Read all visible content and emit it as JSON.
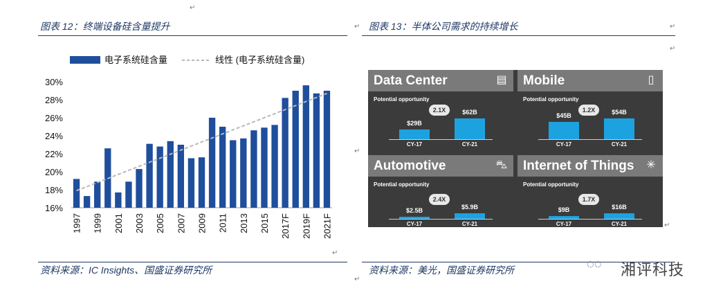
{
  "left": {
    "caption": "图表 12：终端设备硅含量提升",
    "source": "资料来源：IC Insights、国盛证券研究所"
  },
  "right": {
    "caption": "图表 13：半体公司需求的持续增长",
    "source": "资料来源：美光，国盛证券研究所"
  },
  "watermark": "湘评科技",
  "chart_data": [
    {
      "type": "bar",
      "categories": [
        "1997",
        "1998",
        "1999",
        "2000",
        "2001",
        "2002",
        "2003",
        "2004",
        "2005",
        "2006",
        "2007",
        "2008",
        "2009",
        "2010",
        "2011",
        "2012",
        "2013",
        "2014",
        "2015",
        "2016",
        "2017F",
        "2018F",
        "2019F",
        "2020F",
        "2021F"
      ],
      "x_tick_labels": [
        "1997",
        "1999",
        "2001",
        "2003",
        "2005",
        "2007",
        "2009",
        "2011",
        "2013",
        "2015",
        "2017F",
        "2019F",
        "2021F"
      ],
      "series": [
        {
          "name": "电子系统硅含量",
          "values": [
            19.2,
            17.3,
            18.9,
            22.6,
            17.7,
            18.9,
            20.3,
            23.1,
            22.8,
            23.4,
            23.0,
            21.5,
            21.6,
            26.0,
            25.0,
            23.5,
            23.7,
            24.6,
            24.9,
            25.2,
            28.2,
            29.0,
            29.6,
            28.7,
            29.0
          ],
          "color": "#1f4e9c"
        },
        {
          "name": "线性 (电子系统硅含量)",
          "type": "trendline",
          "values_start": 17.9,
          "values_end": 28.7,
          "color": "#b8b8b8"
        }
      ],
      "ylim": [
        16,
        30
      ],
      "y_ticks": [
        "30%",
        "28%",
        "26%",
        "24%",
        "22%",
        "20%",
        "18%",
        "16%"
      ],
      "y_tick_values": [
        30,
        28,
        26,
        24,
        22,
        20,
        18,
        16
      ],
      "legend": "top"
    },
    {
      "type": "bar",
      "subtitle": "Potential opportunity",
      "panels": [
        {
          "title": "Data Center",
          "icon": "server-icon",
          "categories": [
            "CY-17",
            "CY-21"
          ],
          "values": [
            29,
            62
          ],
          "labels": [
            "$29B",
            "$62B"
          ],
          "multiplier": "2.1X"
        },
        {
          "title": "Mobile",
          "icon": "phone-icon",
          "categories": [
            "CY-17",
            "CY-21"
          ],
          "values": [
            45,
            54
          ],
          "labels": [
            "$45B",
            "$54B"
          ],
          "multiplier": "1.2X"
        },
        {
          "title": "Automotive",
          "icon": "car-icon",
          "categories": [
            "CY-17",
            "CY-21"
          ],
          "values": [
            2.5,
            5.9
          ],
          "labels": [
            "$2.5B",
            "$5.9B"
          ],
          "multiplier": "2.4X"
        },
        {
          "title": "Internet of Things",
          "icon": "network-icon",
          "categories": [
            "CY-17",
            "CY-21"
          ],
          "values": [
            9,
            16
          ],
          "labels": [
            "$9B",
            "$16B"
          ],
          "multiplier": "1.7X"
        }
      ]
    }
  ]
}
